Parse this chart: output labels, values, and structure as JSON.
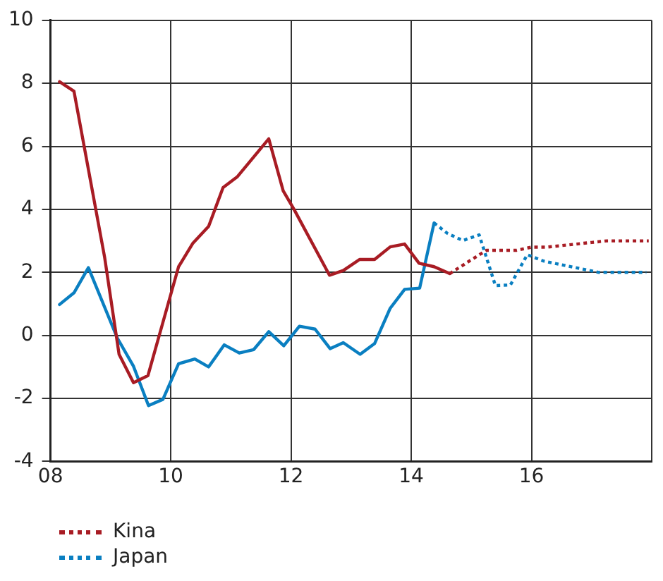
{
  "chart_data": {
    "type": "line",
    "xlim": [
      8,
      18
    ],
    "xticks": [
      {
        "value": 8,
        "label": "08"
      },
      {
        "value": 10,
        "label": "10"
      },
      {
        "value": 12,
        "label": "12"
      },
      {
        "value": 14,
        "label": "14"
      },
      {
        "value": 16,
        "label": "16"
      },
      {
        "value": 18,
        "label": null
      }
    ],
    "ylim": [
      -4,
      10
    ],
    "yticks": [
      -4,
      -2,
      0,
      2,
      4,
      6,
      8,
      10
    ],
    "grid": true,
    "legend": "bottom",
    "marker": "none",
    "series": [
      {
        "color": "#a81c24",
        "line_style": "solid",
        "x": [
          8.15,
          8.39,
          8.9,
          9.14,
          9.38,
          9.62,
          10.13,
          10.37,
          10.63,
          10.87,
          11.11,
          11.37,
          11.63,
          11.87,
          12.05,
          12.64,
          12.87,
          13.14,
          13.39,
          13.65,
          13.89,
          14.13,
          14.38,
          14.64
        ],
        "values": [
          8.05,
          7.75,
          2.48,
          -0.6,
          -1.5,
          -1.28,
          2.18,
          2.93,
          3.46,
          4.69,
          5.04,
          5.64,
          6.24,
          4.59,
          4.0,
          1.91,
          2.06,
          2.41,
          2.41,
          2.81,
          2.9,
          2.29,
          2.18,
          1.96
        ]
      },
      {
        "name": "Kina",
        "color": "#a81c24",
        "line_style": "dotted",
        "x": [
          14.64,
          15.0,
          15.25,
          15.5,
          15.75,
          16.0,
          16.25,
          16.5,
          16.75,
          17.0,
          17.25,
          17.5,
          17.75,
          17.95
        ],
        "values": [
          1.96,
          2.4,
          2.7,
          2.7,
          2.7,
          2.8,
          2.8,
          2.85,
          2.9,
          2.95,
          3.0,
          3.0,
          3.0,
          3.0
        ]
      },
      {
        "color": "#0a7fc1",
        "line_style": "solid",
        "x": [
          8.15,
          8.39,
          8.63,
          9.11,
          9.38,
          9.63,
          9.87,
          10.13,
          10.4,
          10.63,
          10.89,
          11.14,
          11.38,
          11.63,
          11.88,
          12.14,
          12.4,
          12.65,
          12.87,
          13.15,
          13.39,
          13.65,
          13.89,
          14.14,
          14.38
        ],
        "values": [
          0.98,
          1.35,
          2.15,
          -0.08,
          -0.98,
          -2.23,
          -2.03,
          -0.9,
          -0.75,
          -1.0,
          -0.3,
          -0.56,
          -0.45,
          0.12,
          -0.33,
          0.29,
          0.2,
          -0.42,
          -0.23,
          -0.6,
          -0.26,
          0.86,
          1.46,
          1.5,
          3.57
        ]
      },
      {
        "name": "Japan",
        "color": "#0a7fc1",
        "line_style": "dotted",
        "x": [
          14.38,
          14.6,
          14.86,
          15.13,
          15.4,
          15.65,
          15.93,
          16.2,
          16.6,
          17.12,
          17.91
        ],
        "values": [
          3.57,
          3.24,
          3.01,
          3.19,
          1.58,
          1.6,
          2.56,
          2.36,
          2.2,
          2.0,
          2.0
        ]
      }
    ]
  }
}
